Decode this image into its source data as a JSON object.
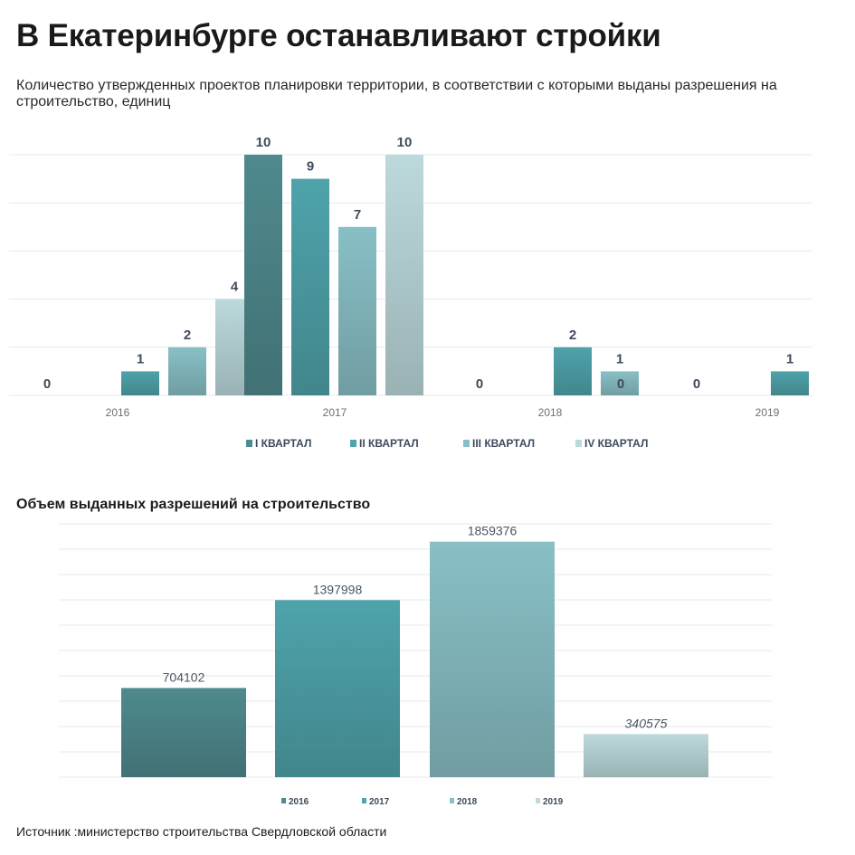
{
  "header": {
    "title": "В Екатеринбурге останавливают стройки",
    "subtitle": "Количество утвержденных проектов планировки территории, в соответствии с которыми выданы разрешения на строительство, единиц"
  },
  "second_title": "Объем выданных разрешений на строительство",
  "source": "Источник :министерство строительства Свердловской области",
  "colors": {
    "q1": "#4f8a8e",
    "q2": "#4fa3ab",
    "q3": "#88c0c6",
    "q4": "#bcd9dc",
    "grid": "#e6e9ec"
  },
  "chart_data": [
    {
      "type": "bar",
      "categories": [
        "2016",
        "2017",
        "2018",
        "2019"
      ],
      "series": [
        {
          "name": "I КВАРТАЛ",
          "values": [
            0,
            10,
            0,
            0
          ]
        },
        {
          "name": "II КВАРТАЛ",
          "values": [
            1,
            9,
            2,
            1
          ]
        },
        {
          "name": "III КВАРТАЛ",
          "values": [
            2,
            7,
            1,
            null
          ]
        },
        {
          "name": "IV КВАРТАЛ",
          "values": [
            4,
            10,
            0,
            null
          ]
        }
      ],
      "ylim": [
        0,
        10
      ],
      "grid": true,
      "legend": "bottom"
    },
    {
      "type": "bar",
      "categories": [
        "2016",
        "2017",
        "2018",
        "2019"
      ],
      "values": [
        704102,
        1397998,
        1859376,
        340575
      ],
      "legend_entries": [
        "2016",
        "2017",
        "2018",
        "2019"
      ],
      "grid": true,
      "legend": "bottom"
    }
  ]
}
